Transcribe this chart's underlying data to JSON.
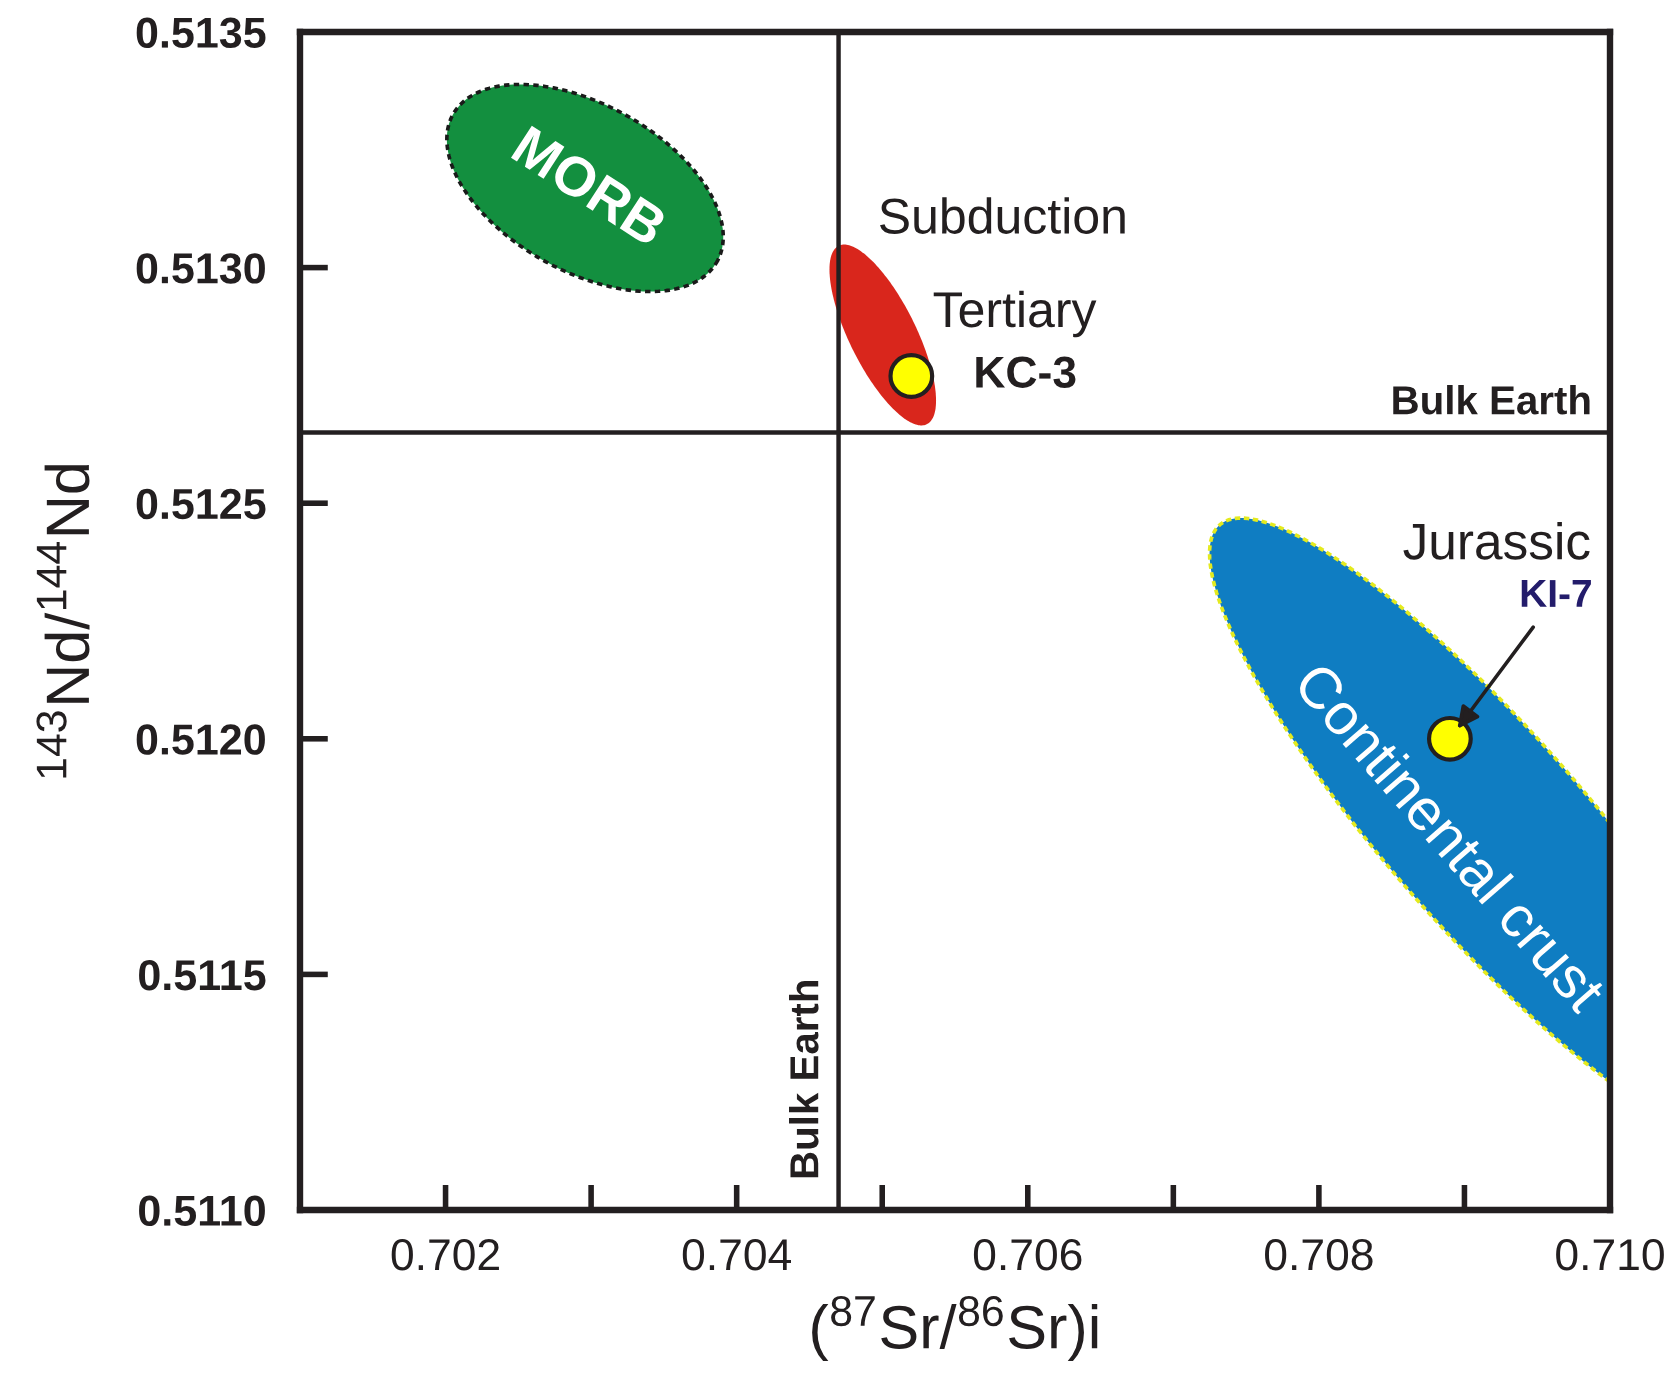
{
  "chart_data": {
    "type": "scatter",
    "xlabel": "($^{87}$Sr/$^{86}$Sr)i",
    "ylabel": "$^{143}$Nd/$^{144}$Nd",
    "x": [
      0.7052,
      0.7089
    ],
    "values": [
      0.51277,
      0.512
    ],
    "color": "#ffff00",
    "marker": "circle",
    "xlim": [
      0.701,
      0.71
    ],
    "ylim": [
      0.511,
      0.5135
    ],
    "xticks": [
      0.702,
      {
        "value": 0.703,
        "label": null
      },
      0.704,
      {
        "value": 0.705,
        "label": null
      },
      0.706,
      {
        "value": 0.707,
        "label": null
      },
      0.708,
      {
        "value": 0.709,
        "label": null
      },
      {
        "value": 0.71,
        "label": "0.710"
      }
    ],
    "yticks": [
      {
        "value": 0.511,
        "label": "0.5110"
      },
      0.5115,
      {
        "value": 0.512,
        "label": "0.5120"
      },
      0.5125,
      {
        "value": 0.513,
        "label": "0.5130"
      },
      0.5135
    ],
    "ref_lines": [
      {
        "axis": "x",
        "value": 0.7047,
        "label": "Bulk Earth",
        "color": "#231f20"
      },
      {
        "axis": "y",
        "value": 0.51265,
        "label": "Bulk Earth",
        "color": "#231f20"
      }
    ],
    "annotations": [
      "MORB",
      "Subduction",
      "Tertiary",
      {
        "text": "KC-3",
        "x": 0.7052,
        "y": 0.51277
      },
      "Jurassic",
      {
        "text": "KI-7",
        "x": 0.7089,
        "y": 0.512
      },
      "Continental crust"
    ]
  }
}
